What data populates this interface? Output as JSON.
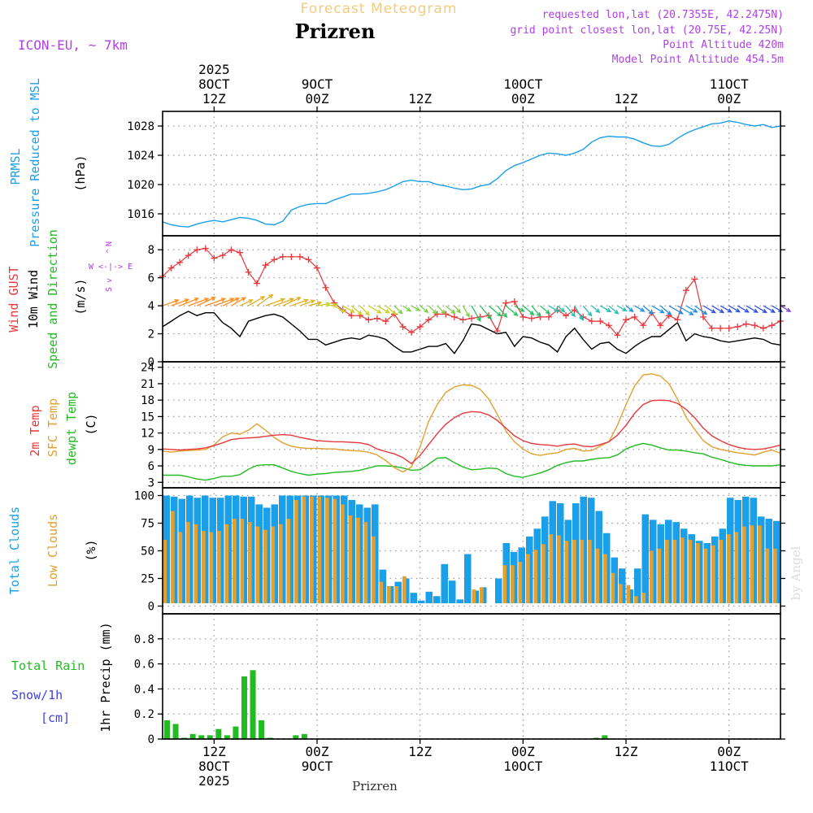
{
  "colors": {
    "blue": "#1a9fe8",
    "red": "#e8383c",
    "green": "#22bb22",
    "orange": "#e2a030",
    "purple": "#b040e8",
    "black": "#000000",
    "gray": "#999999",
    "titlegold": "#f2cc80"
  },
  "header": {
    "meteogram_title": "Forecast Meteogram",
    "location": "Prizren",
    "model": "ICON-EU, ~ 7km",
    "requested": "requested lon,lat (20.7355E, 42.2475N)",
    "grid": "grid point closest lon,lat (20.75E, 42.25N)",
    "point_alt": "Point Altitude 420m",
    "model_alt": "Model Point Altitude 454.5m"
  },
  "footer": {
    "location": "Prizren",
    "watermark": "by Angel"
  },
  "time_axis": {
    "top_labels": [
      {
        "t": 6,
        "l1": "2025",
        "l2": "8OCT",
        "l3": "12Z"
      },
      {
        "t": 18,
        "l2": "9OCT",
        "l3": "00Z"
      },
      {
        "t": 30,
        "l3": "12Z"
      },
      {
        "t": 42,
        "l2": "10OCT",
        "l3": "00Z"
      },
      {
        "t": 54,
        "l3": "12Z"
      },
      {
        "t": 66,
        "l2": "11OCT",
        "l3": "00Z"
      }
    ],
    "bottom_labels": [
      {
        "t": 6,
        "l1": "12Z",
        "l2": "8OCT",
        "l3": "2025"
      },
      {
        "t": 18,
        "l1": "00Z",
        "l2": "9OCT"
      },
      {
        "t": 30,
        "l1": "12Z"
      },
      {
        "t": 42,
        "l1": "00Z",
        "l2": "10OCT"
      },
      {
        "t": 54,
        "l1": "12Z"
      },
      {
        "t": 66,
        "l1": "00Z",
        "l2": "11OCT"
      }
    ]
  },
  "panels": {
    "pressure": {
      "label1": "PRMSL",
      "label2": "Pressure Reduced to MSL",
      "unit": "(hPa)",
      "ticks": [
        "1016",
        "1020",
        "1024",
        "1028"
      ]
    },
    "wind": {
      "label1": "Wind GUST",
      "label2": "10m Wind",
      "label3": "Speed and Direction",
      "unit": "(m/s)",
      "ticks": [
        "0",
        "2",
        "4",
        "6",
        "8"
      ],
      "compass_n": "N",
      "compass_we": "W <-|-> E",
      "compass_s": "S",
      "compass_up": "^",
      "compass_down": "v"
    },
    "temp": {
      "label1": "2m Temp",
      "label2": "SFC Temp",
      "label3": "dewpt Temp",
      "unit": "(C)",
      "ticks": [
        "3",
        "6",
        "9",
        "12",
        "15",
        "18",
        "21",
        "24"
      ]
    },
    "cloud": {
      "label1": "Total Clouds",
      "label2": "Low Clouds",
      "unit": "(%)",
      "ticks": [
        "0",
        "25",
        "50",
        "75",
        "100"
      ]
    },
    "precip": {
      "label1": "Total  Rain",
      "label2": "Snow/1h",
      "label3": "[cm]",
      "unit": "1hr Precip (mm)",
      "ticks": [
        "0",
        "0.2",
        "0.4",
        "0.6",
        "0.8"
      ]
    }
  },
  "chart_data": [
    {
      "type": "line",
      "title": "PRMSL Pressure Reduced to MSL",
      "ylabel": "hPa",
      "ylim": [
        1013,
        1030
      ],
      "x_hours_from_00Z_8OCT_start": 0,
      "x_step_hours": 1,
      "series": [
        {
          "name": "PRMSL",
          "values": [
            1014.9,
            1014.5,
            1014.3,
            1014.2,
            1014.6,
            1014.9,
            1015.1,
            1014.9,
            1015.2,
            1015.5,
            1015.4,
            1015.1,
            1014.6,
            1014.5,
            1015.0,
            1016.5,
            1017.0,
            1017.3,
            1017.4,
            1017.4,
            1017.9,
            1018.3,
            1018.7,
            1018.7,
            1018.8,
            1019.0,
            1019.3,
            1019.8,
            1020.4,
            1020.6,
            1020.4,
            1020.4,
            1020.0,
            1019.8,
            1019.5,
            1019.3,
            1019.4,
            1019.8,
            1020.0,
            1020.8,
            1021.9,
            1022.6,
            1023.0,
            1023.5,
            1024.0,
            1024.3,
            1024.2,
            1024.0,
            1024.3,
            1024.8,
            1025.8,
            1026.4,
            1026.6,
            1026.5,
            1026.5,
            1026.2,
            1025.7,
            1025.3,
            1025.2,
            1025.5,
            1026.3,
            1027.0,
            1027.5,
            1027.9,
            1028.3,
            1028.4,
            1028.7,
            1028.5,
            1028.2,
            1028.0,
            1028.2,
            1027.8,
            1028.0
          ]
        }
      ]
    },
    {
      "type": "line",
      "title": "Wind GUST / 10m Wind Speed and Direction",
      "ylabel": "m/s",
      "ylim": [
        0,
        9
      ],
      "series": [
        {
          "name": "Wind GUST",
          "values": [
            6.1,
            6.7,
            7.1,
            7.6,
            8.0,
            8.1,
            7.4,
            7.6,
            8.0,
            7.8,
            6.4,
            5.6,
            6.9,
            7.3,
            7.5,
            7.5,
            7.5,
            7.3,
            6.7,
            5.3,
            4.2,
            3.7,
            3.3,
            3.3,
            3.0,
            3.1,
            2.9,
            3.4,
            2.5,
            2.1,
            2.5,
            3.0,
            3.4,
            3.4,
            3.2,
            3.0,
            3.1,
            3.2,
            3.3,
            2.2,
            4.2,
            4.3,
            3.2,
            3.1,
            3.2,
            3.2,
            3.7,
            3.3,
            3.7,
            3.2,
            2.9,
            2.9,
            2.6,
            1.9,
            3.0,
            3.2,
            2.6,
            3.5,
            2.6,
            3.3,
            3.0,
            5.1,
            5.9,
            3.2,
            2.4,
            2.4,
            2.4,
            2.5,
            2.7,
            2.6,
            2.4,
            2.6,
            2.9
          ]
        },
        {
          "name": "10m Wind",
          "values": [
            2.5,
            2.9,
            3.3,
            3.6,
            3.3,
            3.5,
            3.5,
            2.8,
            2.4,
            1.8,
            2.9,
            3.1,
            3.3,
            3.4,
            3.2,
            2.7,
            2.2,
            1.6,
            1.6,
            1.2,
            1.4,
            1.6,
            1.7,
            1.6,
            1.9,
            1.8,
            1.6,
            1.1,
            0.7,
            0.7,
            0.9,
            1.1,
            1.1,
            1.3,
            0.6,
            1.5,
            2.7,
            2.6,
            2.3,
            2.0,
            2.1,
            1.1,
            1.8,
            1.7,
            1.4,
            1.2,
            0.7,
            1.8,
            2.4,
            1.6,
            0.9,
            1.3,
            1.4,
            0.9,
            0.6,
            1.1,
            1.5,
            1.8,
            1.8,
            2.3,
            2.8,
            1.5,
            2.0,
            1.8,
            1.7,
            1.5,
            1.4,
            1.5,
            1.6,
            1.7,
            1.6,
            1.3,
            1.2
          ]
        }
      ],
      "arrows": [
        [
          0,
          250
        ],
        [
          1,
          250
        ],
        [
          2,
          248
        ],
        [
          3,
          250
        ],
        [
          4,
          245
        ],
        [
          5,
          250
        ],
        [
          6,
          250
        ],
        [
          7,
          245
        ],
        [
          8,
          240
        ],
        [
          9,
          245
        ],
        [
          10,
          240
        ],
        [
          11,
          235
        ],
        [
          12,
          250
        ],
        [
          13,
          250
        ],
        [
          14,
          245
        ],
        [
          15,
          250
        ],
        [
          16,
          250
        ],
        [
          17,
          255
        ],
        [
          18,
          260
        ],
        [
          19,
          265
        ],
        [
          20,
          300
        ],
        [
          21,
          300
        ],
        [
          22,
          310
        ],
        [
          23,
          315
        ],
        [
          24,
          300
        ],
        [
          25,
          300
        ],
        [
          26,
          310
        ],
        [
          27,
          315
        ],
        [
          28,
          305
        ],
        [
          29,
          300
        ],
        [
          30,
          310
        ],
        [
          31,
          315
        ],
        [
          32,
          315
        ],
        [
          33,
          310
        ],
        [
          34,
          320
        ],
        [
          35,
          330
        ],
        [
          36,
          330
        ],
        [
          37,
          320
        ],
        [
          38,
          310
        ],
        [
          39,
          320
        ],
        [
          40,
          310
        ],
        [
          41,
          300
        ],
        [
          42,
          310
        ],
        [
          43,
          320
        ],
        [
          44,
          310
        ],
        [
          45,
          300
        ],
        [
          46,
          310
        ],
        [
          47,
          320
        ],
        [
          48,
          330
        ],
        [
          49,
          320
        ],
        [
          50,
          310
        ],
        [
          51,
          300
        ],
        [
          52,
          310
        ],
        [
          53,
          300
        ],
        [
          54,
          310
        ],
        [
          55,
          300
        ],
        [
          56,
          310
        ],
        [
          57,
          300
        ],
        [
          58,
          310
        ],
        [
          59,
          300
        ],
        [
          60,
          300
        ],
        [
          61,
          300
        ],
        [
          62,
          305
        ],
        [
          63,
          300
        ],
        [
          64,
          300
        ],
        [
          65,
          300
        ],
        [
          66,
          300
        ],
        [
          67,
          300
        ],
        [
          68,
          300
        ],
        [
          69,
          300
        ],
        [
          70,
          300
        ],
        [
          71,
          300
        ],
        [
          72,
          300
        ]
      ]
    },
    {
      "type": "line",
      "title": "2m Temp / SFC Temp / dewpt Temp",
      "ylabel": "C",
      "ylim": [
        2,
        25
      ],
      "series": [
        {
          "name": "2m Temp",
          "values": [
            9.1,
            9.0,
            8.9,
            9.0,
            9.1,
            9.3,
            9.7,
            10.2,
            10.8,
            11.0,
            11.1,
            11.2,
            11.4,
            11.6,
            11.7,
            11.6,
            11.2,
            10.9,
            10.6,
            10.5,
            10.4,
            10.4,
            10.3,
            10.2,
            9.9,
            9.1,
            8.6,
            8.2,
            7.5,
            6.4,
            7.9,
            9.9,
            11.9,
            13.6,
            14.8,
            15.6,
            15.9,
            15.8,
            15.3,
            14.3,
            12.9,
            11.5,
            10.6,
            10.1,
            9.9,
            9.8,
            9.6,
            9.9,
            10.0,
            9.6,
            9.5,
            9.9,
            10.4,
            11.6,
            13.4,
            15.6,
            17.2,
            17.9,
            18.0,
            17.9,
            17.4,
            16.3,
            14.8,
            12.9,
            11.5,
            10.6,
            9.9,
            9.4,
            9.1,
            9.0,
            9.1,
            9.4,
            9.8
          ]
        },
        {
          "name": "SFC Temp",
          "values": [
            8.7,
            8.5,
            8.7,
            8.8,
            8.9,
            9.0,
            9.8,
            11.3,
            12.0,
            11.8,
            12.5,
            13.7,
            12.5,
            11.2,
            10.2,
            9.6,
            9.3,
            9.2,
            9.2,
            9.1,
            9.1,
            8.9,
            8.8,
            8.7,
            8.5,
            8.0,
            7.0,
            5.7,
            4.9,
            5.8,
            9.5,
            14.1,
            17.2,
            19.4,
            20.4,
            20.8,
            20.7,
            20.0,
            18.2,
            15.4,
            12.4,
            10.4,
            9.1,
            8.2,
            7.9,
            8.2,
            8.4,
            9.0,
            9.2,
            8.7,
            8.8,
            9.6,
            10.4,
            13.4,
            17.2,
            20.6,
            22.6,
            22.8,
            22.4,
            21.0,
            18.2,
            14.9,
            12.7,
            10.6,
            9.5,
            9.0,
            8.7,
            8.4,
            8.2,
            8.0,
            8.5,
            8.9,
            8.3
          ]
        },
        {
          "name": "dewpt Temp",
          "values": [
            4.3,
            4.3,
            4.3,
            4.0,
            3.6,
            3.4,
            3.7,
            4.1,
            4.1,
            4.4,
            5.4,
            6.1,
            6.2,
            6.2,
            5.6,
            5.0,
            4.6,
            4.3,
            4.5,
            4.6,
            4.8,
            4.9,
            5.0,
            5.2,
            5.6,
            6.0,
            6.0,
            5.9,
            5.6,
            5.2,
            5.3,
            6.3,
            7.4,
            7.5,
            6.6,
            5.8,
            5.3,
            5.4,
            5.6,
            5.5,
            4.6,
            4.1,
            3.9,
            4.3,
            4.7,
            5.3,
            6.1,
            6.6,
            6.9,
            6.9,
            7.2,
            7.4,
            7.5,
            8.0,
            9.1,
            9.7,
            10.1,
            9.8,
            9.3,
            8.9,
            8.9,
            8.7,
            8.4,
            8.2,
            7.6,
            7.2,
            6.7,
            6.3,
            6.1,
            6.0,
            6.0,
            6.0,
            6.2
          ]
        }
      ]
    },
    {
      "type": "bar",
      "title": "Total Clouds / Low Clouds",
      "ylabel": "%",
      "ylim": [
        -7,
        107
      ],
      "series": [
        {
          "name": "Total Clouds",
          "values": [
            100,
            99,
            97,
            100,
            98,
            100,
            98,
            98,
            100,
            100,
            99,
            99,
            92,
            89,
            92,
            100,
            100,
            100,
            100,
            100,
            100,
            100,
            100,
            100,
            96,
            92,
            89,
            92,
            33,
            18,
            22,
            25,
            12,
            5,
            13,
            9,
            38,
            23,
            6,
            47,
            14,
            17,
            2,
            25,
            57,
            49,
            53,
            63,
            70,
            81,
            95,
            93,
            78,
            93,
            99,
            98,
            86,
            66,
            44,
            34,
            15,
            34,
            83,
            78,
            74,
            78,
            76,
            70,
            65,
            59,
            57,
            63,
            70,
            98,
            96,
            99,
            98,
            81,
            79,
            77
          ]
        },
        {
          "name": "Low Clouds",
          "values": [
            60,
            86,
            67,
            76,
            74,
            68,
            67,
            68,
            74,
            79,
            79,
            76,
            72,
            69,
            72,
            74,
            79,
            96,
            99,
            99,
            99,
            98,
            97,
            92,
            82,
            80,
            76,
            63,
            22,
            18,
            18,
            27,
            2,
            0,
            0,
            0,
            0,
            0,
            0,
            0,
            15,
            17,
            0,
            0,
            37,
            37,
            40,
            47,
            51,
            56,
            65,
            64,
            59,
            60,
            60,
            60,
            52,
            47,
            30,
            20,
            19,
            9,
            12,
            50,
            52,
            60,
            60,
            62,
            60,
            57,
            52,
            55,
            60,
            65,
            67,
            72,
            73,
            73,
            52,
            52
          ]
        }
      ]
    },
    {
      "type": "bar",
      "title": "1hr Precip",
      "ylabel": "mm",
      "ylim": [
        0,
        1.0
      ],
      "series": [
        {
          "name": "Total Rain",
          "values": [
            0.15,
            0.12,
            0.01,
            0.04,
            0.03,
            0.03,
            0.08,
            0.03,
            0.1,
            0.5,
            0.55,
            0.15,
            0.01,
            0,
            0,
            0.03,
            0.04,
            0,
            0,
            0,
            0,
            0,
            0,
            0,
            0,
            0,
            0,
            0,
            0,
            0,
            0,
            0,
            0,
            0,
            0,
            0,
            0,
            0,
            0,
            0,
            0,
            0,
            0,
            0,
            0,
            0,
            0,
            0,
            0,
            0,
            0.01,
            0.03,
            0,
            0,
            0,
            0,
            0,
            0,
            0,
            0,
            0,
            0,
            0,
            0,
            0,
            0,
            0,
            0,
            0,
            0,
            0,
            0,
            0
          ]
        }
      ]
    }
  ]
}
